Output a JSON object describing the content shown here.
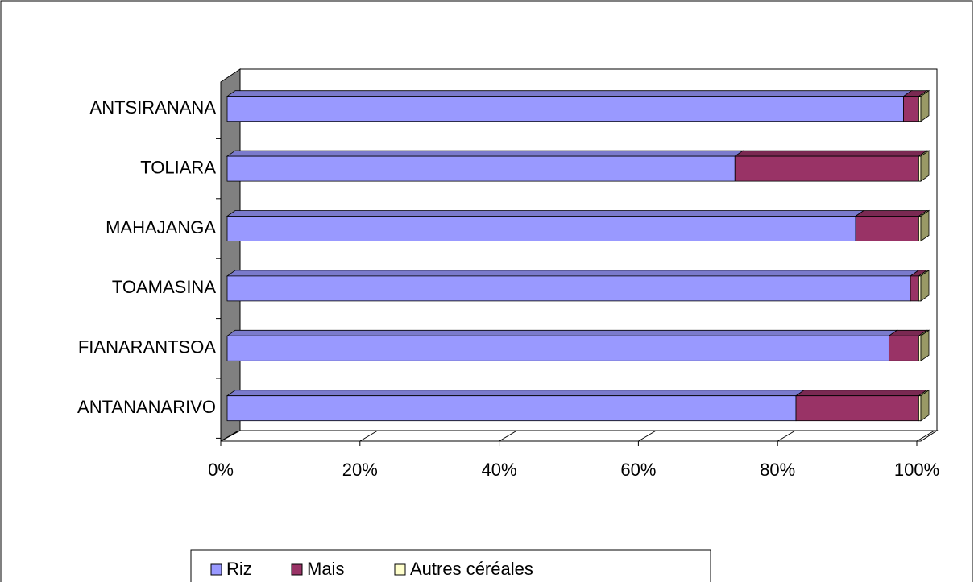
{
  "chart_data": {
    "type": "bar3d_stacked_horizontal",
    "categories": [
      "ANTANANARIVO",
      "FIANARANTSOA",
      "TOAMASINA",
      "MAHAJANGA",
      "TOLIARA",
      "ANTSIRANANA"
    ],
    "series": [
      {
        "name": "Riz",
        "color": "#9999ff",
        "values": [
          82.0,
          95.4,
          98.5,
          90.6,
          73.2,
          97.5
        ]
      },
      {
        "name": "Mais",
        "color": "#993366",
        "values": [
          17.7,
          4.3,
          1.2,
          9.1,
          26.5,
          2.2
        ]
      },
      {
        "name": "Autres céréales",
        "color": "#ffffcc",
        "values": [
          0.3,
          0.3,
          0.3,
          0.3,
          0.3,
          0.3
        ]
      }
    ],
    "xlim": [
      0,
      100
    ],
    "xticks": [
      {
        "value": 0,
        "label": "0%"
      },
      {
        "value": 20,
        "label": "20%"
      },
      {
        "value": 40,
        "label": "40%"
      },
      {
        "value": 60,
        "label": "60%"
      },
      {
        "value": 80,
        "label": "80%"
      },
      {
        "value": 100,
        "label": "100%"
      }
    ],
    "legend": "bottom"
  }
}
